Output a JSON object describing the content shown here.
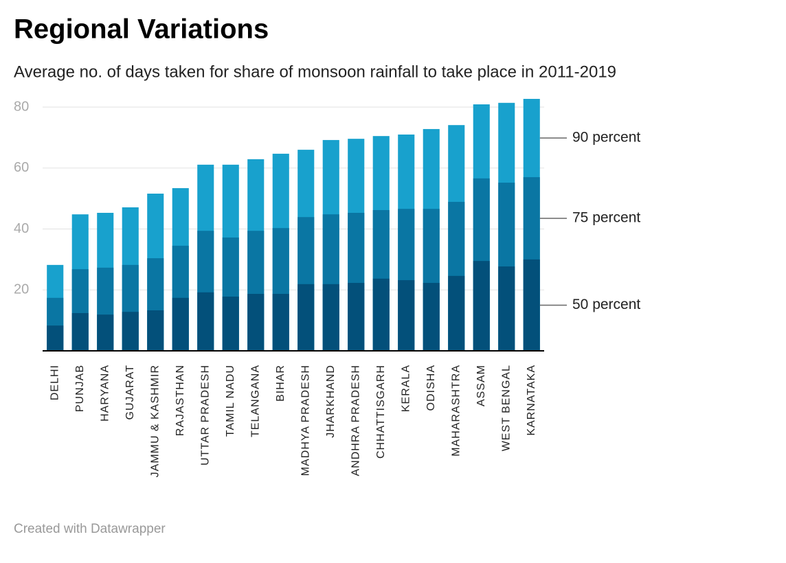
{
  "chart_data": {
    "type": "bar",
    "overlap": true,
    "title": "Regional Variations",
    "subtitle": "Average no. of days taken for share of monsoon rainfall to take place in 2011-2019",
    "footer": "Created with Datawrapper",
    "categories": [
      "DELHI",
      "PUNJAB",
      "HARYANA",
      "GUJARAT",
      "JAMMU & KASHMIR",
      "RAJASTHAN",
      "UTTAR PRADESH",
      "TAMIL NADU",
      "TELANGANA",
      "BIHAR",
      "MADHYA PRADESH",
      "JHARKHAND",
      "ANDHRA PRADESH",
      "CHHATTISGARH",
      "KERALA",
      "ODISHA",
      "MAHARASHTRA",
      "ASSAM",
      "WEST BENGAL",
      "KARNATAKA"
    ],
    "series": [
      {
        "name": "90 percent",
        "color": "#18a1cd",
        "values": [
          28.2,
          44.8,
          45.3,
          47.1,
          51.6,
          53.4,
          61.1,
          61.1,
          62.9,
          64.7,
          66.0,
          69.2,
          69.6,
          70.5,
          71.0,
          72.8,
          74.1,
          80.9,
          81.4,
          82.7
        ]
      },
      {
        "name": "75 percent",
        "color": "#0a76a3",
        "values": [
          17.4,
          26.8,
          27.3,
          28.2,
          30.4,
          34.5,
          39.4,
          37.2,
          39.4,
          40.3,
          43.9,
          44.8,
          45.3,
          46.2,
          46.6,
          46.6,
          48.9,
          56.6,
          55.2,
          57.0
        ]
      },
      {
        "name": "50 percent",
        "color": "#03507a",
        "values": [
          8.3,
          12.4,
          11.9,
          12.8,
          13.3,
          17.4,
          19.2,
          17.8,
          18.7,
          18.7,
          21.9,
          21.9,
          22.3,
          23.7,
          23.2,
          22.3,
          24.6,
          29.5,
          27.7,
          30.0
        ]
      }
    ],
    "ylim": [
      0,
      80
    ],
    "yticks": [
      20,
      40,
      60,
      80
    ],
    "grid": true
  }
}
